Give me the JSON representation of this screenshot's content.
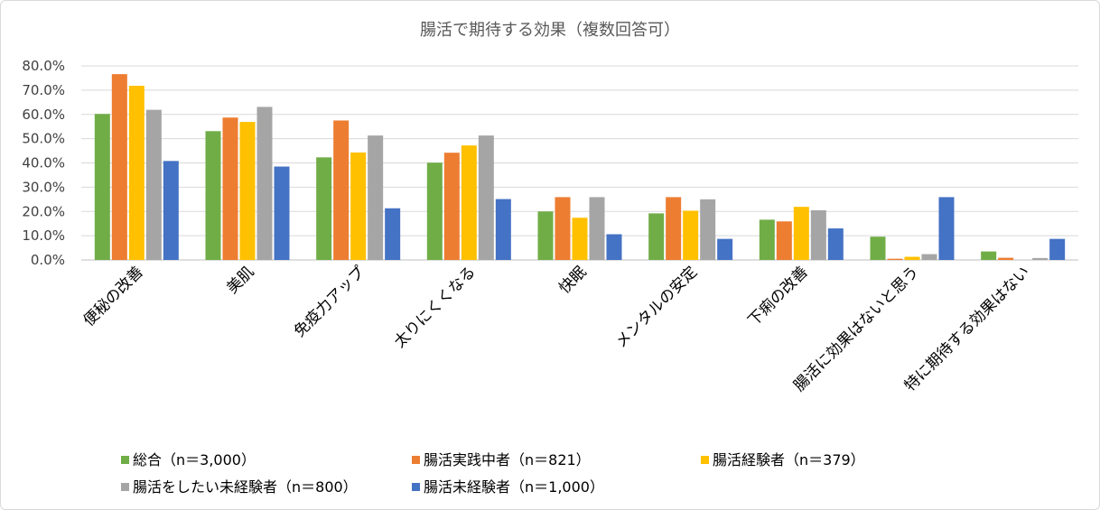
{
  "chart_data": {
    "type": "bar",
    "title": "腸活で期待する効果（複数回答可）",
    "xlabel": "",
    "ylabel": "",
    "ylim": [
      0,
      80
    ],
    "yticks": [
      "0.0%",
      "10.0%",
      "20.0%",
      "30.0%",
      "40.0%",
      "50.0%",
      "60.0%",
      "70.0%",
      "80.0%"
    ],
    "grid": true,
    "legend_position": "bottom",
    "categories": [
      "便秘の改善",
      "美肌",
      "免疫力アップ",
      "太りにくくなる",
      "快眠",
      "メンタルの安定",
      "下痢の改善",
      "腸活に効果はないと思う",
      "特に期待する効果はない"
    ],
    "series": [
      {
        "name": "総合（n＝3,000）",
        "color": "#70ad47",
        "values": [
          60.2,
          53.1,
          42.3,
          40.1,
          20.0,
          19.2,
          16.6,
          9.6,
          3.5
        ]
      },
      {
        "name": "腸活実践中者（n＝821）",
        "color": "#ed7d31",
        "values": [
          76.6,
          58.7,
          57.5,
          44.2,
          25.9,
          25.9,
          15.9,
          0.5,
          0.9
        ]
      },
      {
        "name": "腸活経験者（n＝379）",
        "color": "#ffc000",
        "values": [
          71.8,
          56.9,
          44.3,
          47.2,
          17.4,
          20.3,
          21.9,
          1.3,
          0.0
        ]
      },
      {
        "name": "腸活をしたい未経験者（n＝800）",
        "color": "#a5a5a5",
        "values": [
          61.9,
          63.1,
          51.3,
          51.3,
          25.9,
          25.0,
          20.5,
          2.4,
          0.8
        ]
      },
      {
        "name": "腸活未経験者（n＝1,000）",
        "color": "#4472c4",
        "values": [
          40.8,
          38.5,
          21.3,
          25.1,
          10.6,
          8.7,
          13.0,
          25.9,
          8.7
        ]
      }
    ]
  }
}
